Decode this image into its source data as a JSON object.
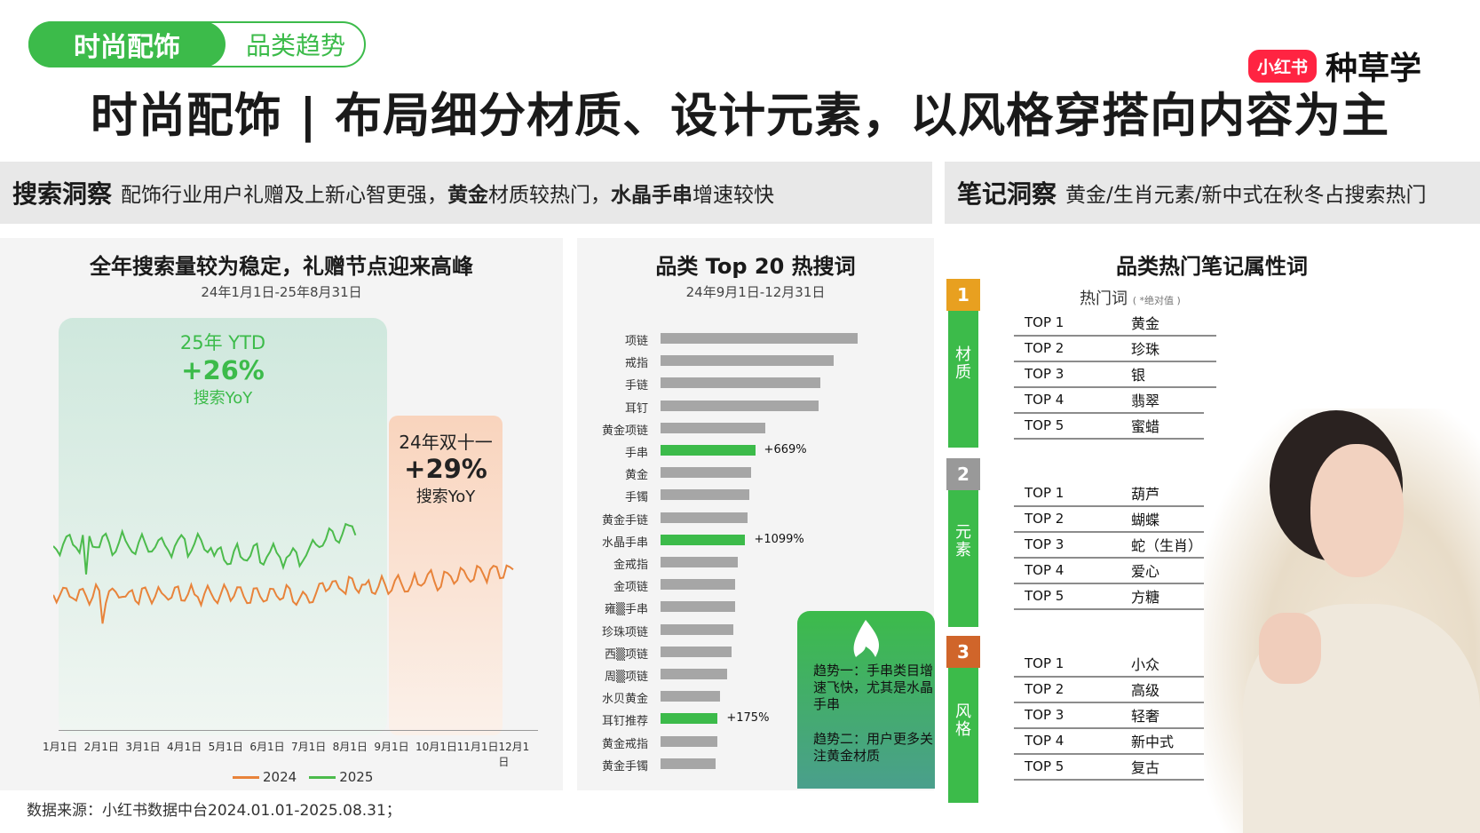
{
  "tabs": {
    "active": "时尚配饰",
    "inactive": "品类趋势"
  },
  "brand": {
    "logo": "小红书",
    "name": "种草学"
  },
  "main_title": "时尚配饰 | 布局细分材质、设计元素，以风格穿搭向内容为主",
  "search_insight": {
    "head": "搜索洞察",
    "text1": "配饰行业用户礼赠及上新心智更强，",
    "bold1": "黄金",
    "text2": "材质较热门，",
    "bold2": "水晶手串",
    "text3": "增速较快"
  },
  "note_insight": {
    "head": "笔记洞察",
    "text": "黄金/生肖元素/新中式在秋冬占搜索热门"
  },
  "search_volume": {
    "title": "全年搜索量较为稳定，礼赠节点迎来高峰",
    "subtitle": "24年1月1日-25年8月31日",
    "ytd": {
      "label": "25年 YTD",
      "value": "+26%",
      "sub": "搜索YoY"
    },
    "double11": {
      "label": "24年双十一",
      "value": "+29%",
      "sub": "搜索YoY"
    },
    "months": [
      "1月1日",
      "2月1日",
      "3月1日",
      "4月1日",
      "5月1日",
      "6月1日",
      "7月1日",
      "8月1日",
      "9月1日",
      "10月1日",
      "11月1日",
      "12月1日"
    ],
    "legend": [
      "2024",
      "2025"
    ],
    "colors": {
      "y2024": "#e8833a",
      "y2025": "#4cbb4c"
    }
  },
  "chart_data": {
    "type": "bar",
    "title": "品类 Top 20 热搜词",
    "subtitle": "24年9月1日-12月31日",
    "categories": [
      "项链",
      "戒指",
      "手链",
      "耳钉",
      "黄金项链",
      "手串",
      "黄金",
      "手镯",
      "黄金手链",
      "水晶手串",
      "金戒指",
      "金项链",
      "雍▒手串",
      "珍珠项链",
      "西▒项链",
      "周▒项链",
      "水贝黄金",
      "耳钉推荐",
      "黄金戒指",
      "黄金手镯"
    ],
    "values": [
      100,
      88,
      81,
      80,
      53,
      48,
      46,
      45,
      44,
      43,
      39,
      38,
      38,
      37,
      36,
      34,
      30,
      29,
      29,
      28
    ],
    "highlight": [
      5,
      9,
      17
    ],
    "labels": {
      "5": "+669%",
      "9": "+1099%",
      "17": "+175%"
    },
    "colors": {
      "normal": "#a6a6a6",
      "highlight": "#3cbb4a"
    }
  },
  "trends": {
    "t1": "趋势一：手串类目增速飞快，尤其是水晶手串",
    "t2": "趋势二：用户更多关注黄金材质"
  },
  "notes": {
    "title": "品类热门笔记属性词",
    "hot_head": "热门词",
    "hot_note": "( *绝对值 )",
    "groups": [
      {
        "num": "1",
        "name": "材质",
        "rows": [
          [
            "TOP 1",
            "黄金"
          ],
          [
            "TOP 2",
            "珍珠"
          ],
          [
            "TOP 3",
            "银"
          ],
          [
            "TOP 4",
            "翡翠"
          ],
          [
            "TOP 5",
            "蜜蜡"
          ]
        ]
      },
      {
        "num": "2",
        "name": "元素",
        "rows": [
          [
            "TOP 1",
            "葫芦"
          ],
          [
            "TOP 2",
            "蝴蝶"
          ],
          [
            "TOP 3",
            "蛇（生肖）"
          ],
          [
            "TOP 4",
            "爱心"
          ],
          [
            "TOP 5",
            "方糖"
          ]
        ]
      },
      {
        "num": "3",
        "name": "风格",
        "rows": [
          [
            "TOP 1",
            "小众"
          ],
          [
            "TOP 2",
            "高级"
          ],
          [
            "TOP 3",
            "轻奢"
          ],
          [
            "TOP 4",
            "新中式"
          ],
          [
            "TOP 5",
            "复古"
          ]
        ]
      }
    ]
  },
  "source": "数据来源：小红书数据中台2024.01.01-2025.08.31；"
}
